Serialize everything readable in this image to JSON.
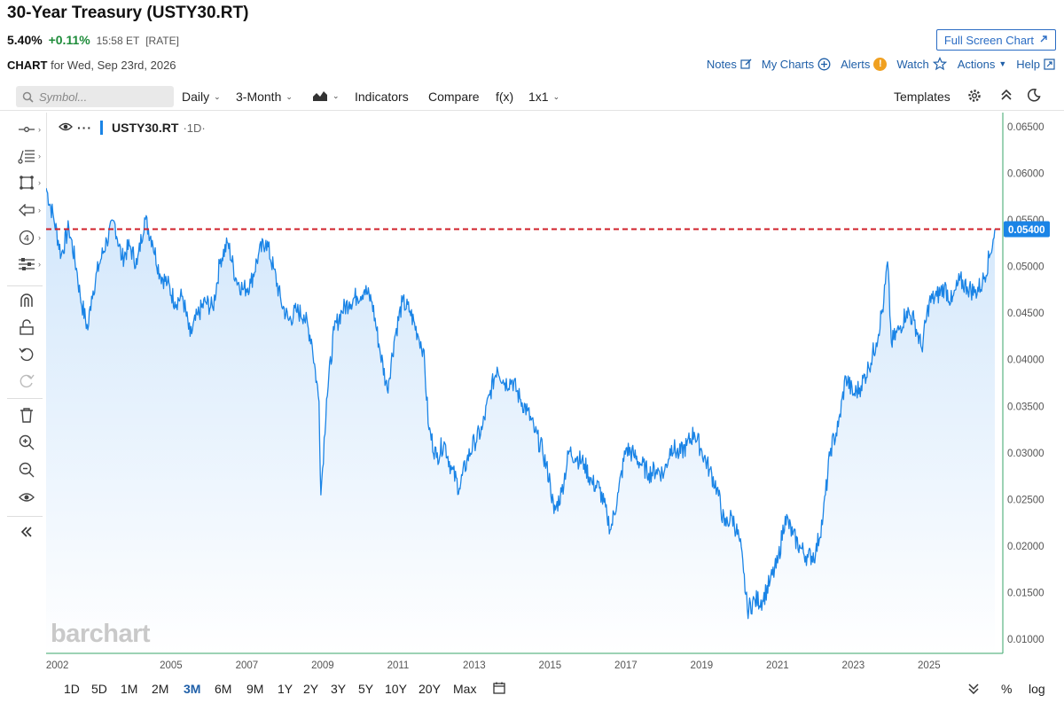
{
  "header": {
    "title": "30-Year Treasury (USTY30.RT)",
    "price": "5.40%",
    "change": "+0.11%",
    "time": "15:58 ET",
    "type": "[RATE]",
    "fullscreen_label": "Full Screen Chart",
    "chart_label": "CHART",
    "chart_date": "for Wed, Sep 23rd, 2026"
  },
  "actions": {
    "notes": "Notes",
    "my_charts": "My Charts",
    "alerts": "Alerts",
    "alerts_badge": "!",
    "watch": "Watch",
    "actions": "Actions",
    "help": "Help"
  },
  "toolbar": {
    "symbol_placeholder": "Symbol...",
    "interval": "Daily",
    "period": "3-Month",
    "indicators": "Indicators",
    "compare": "Compare",
    "fx": "f(x)",
    "layout": "1x1",
    "templates": "Templates"
  },
  "legend": {
    "symbol": "USTY30.RT",
    "interval": "·1D·"
  },
  "watermark": "barchart",
  "ranges": [
    "1D",
    "5D",
    "1M",
    "2M",
    "3M",
    "6M",
    "9M",
    "1Y",
    "2Y",
    "3Y",
    "5Y",
    "10Y",
    "20Y",
    "Max"
  ],
  "active_range": "3M",
  "bottom_right": {
    "percent": "%",
    "log": "log"
  },
  "colors": {
    "line": "#1a84e6",
    "fill_top": "#cfe5fb",
    "ref_line": "#d0202a",
    "price_tag": "#1a84e6",
    "accent": "#1f5fa8",
    "positive": "#1e8c3a"
  },
  "chart_data": {
    "type": "area",
    "y_axis_position": "right",
    "ylim": [
      0.0085,
      0.0665
    ],
    "y_ticks": [
      "0.06500",
      "0.06000",
      "0.05500",
      "0.05000",
      "0.04500",
      "0.04000",
      "0.03500",
      "0.03000",
      "0.02500",
      "0.02000",
      "0.01500",
      "0.01000"
    ],
    "x_ticks": [
      "2002",
      "2005",
      "2007",
      "2009",
      "2011",
      "2013",
      "2015",
      "2017",
      "2019",
      "2021",
      "2023",
      "2025"
    ],
    "reference_line": {
      "value": 0.054,
      "label": "0.05400"
    },
    "series": [
      {
        "x": [
          2001.7,
          2001.9,
          2002.1,
          2002.3,
          2002.5,
          2002.6,
          2002.8,
          2002.9,
          2003.1,
          2003.3,
          2003.5,
          2003.7,
          2003.9,
          2004.1,
          2004.3,
          2004.5,
          2004.7,
          2004.9,
          2005.1,
          2005.3,
          2005.5,
          2005.7,
          2005.9,
          2006.1,
          2006.3,
          2006.5,
          2006.7,
          2006.9,
          2007.1,
          2007.3,
          2007.5,
          2007.7,
          2007.9,
          2008.1,
          2008.3,
          2008.5,
          2008.7,
          2008.9,
          2008.95,
          2009.1,
          2009.3,
          2009.5,
          2009.7,
          2009.9,
          2010.1,
          2010.3,
          2010.5,
          2010.7,
          2010.9,
          2011.1,
          2011.3,
          2011.5,
          2011.65,
          2011.8,
          2012.0,
          2012.2,
          2012.4,
          2012.6,
          2012.8,
          2013.0,
          2013.2,
          2013.4,
          2013.6,
          2013.8,
          2014.0,
          2014.2,
          2014.4,
          2014.6,
          2014.8,
          2015.0,
          2015.1,
          2015.3,
          2015.5,
          2015.7,
          2015.9,
          2016.1,
          2016.3,
          2016.5,
          2016.6,
          2016.8,
          2017.0,
          2017.2,
          2017.4,
          2017.6,
          2017.8,
          2018.0,
          2018.2,
          2018.4,
          2018.6,
          2018.8,
          2019.0,
          2019.2,
          2019.4,
          2019.6,
          2019.8,
          2020.0,
          2020.1,
          2020.2,
          2020.4,
          2020.6,
          2020.8,
          2021.0,
          2021.2,
          2021.4,
          2021.6,
          2021.8,
          2022.0,
          2022.2,
          2022.4,
          2022.6,
          2022.8,
          2023.0,
          2023.2,
          2023.4,
          2023.6,
          2023.8,
          2023.9,
          2024.0,
          2024.2,
          2024.4,
          2024.6,
          2024.8,
          2025.0,
          2025.2,
          2025.4,
          2025.6,
          2025.8,
          2026.0,
          2026.2,
          2026.4,
          2026.6,
          2026.73
        ],
        "values": [
          0.0584,
          0.0552,
          0.0512,
          0.0542,
          0.0498,
          0.0468,
          0.0432,
          0.0468,
          0.0502,
          0.0528,
          0.0548,
          0.0508,
          0.0522,
          0.0502,
          0.0552,
          0.0528,
          0.0492,
          0.0482,
          0.0462,
          0.0468,
          0.0425,
          0.0448,
          0.0462,
          0.0455,
          0.0508,
          0.0525,
          0.0488,
          0.0475,
          0.0482,
          0.0512,
          0.0528,
          0.0498,
          0.0462,
          0.0442,
          0.0452,
          0.0448,
          0.0422,
          0.0355,
          0.0255,
          0.0358,
          0.0432,
          0.0452,
          0.0462,
          0.0468,
          0.0475,
          0.0462,
          0.0412,
          0.0368,
          0.0425,
          0.0462,
          0.0452,
          0.0428,
          0.0412,
          0.0325,
          0.0295,
          0.0312,
          0.0282,
          0.0262,
          0.0292,
          0.0312,
          0.0325,
          0.0362,
          0.0392,
          0.0375,
          0.0378,
          0.0358,
          0.0345,
          0.0322,
          0.0302,
          0.0268,
          0.0235,
          0.0258,
          0.0302,
          0.0295,
          0.0288,
          0.0268,
          0.0262,
          0.0232,
          0.0218,
          0.0258,
          0.0305,
          0.0298,
          0.0288,
          0.0278,
          0.0282,
          0.0278,
          0.0308,
          0.0298,
          0.0308,
          0.0322,
          0.0302,
          0.0282,
          0.0262,
          0.0222,
          0.0232,
          0.0205,
          0.0172,
          0.0132,
          0.0142,
          0.0142,
          0.0162,
          0.0182,
          0.0232,
          0.0212,
          0.0198,
          0.0188,
          0.0192,
          0.0232,
          0.0305,
          0.0328,
          0.0382,
          0.0362,
          0.0372,
          0.0392,
          0.0418,
          0.0462,
          0.0505,
          0.0418,
          0.0432,
          0.0452,
          0.0442,
          0.0412,
          0.0462,
          0.0468,
          0.0478,
          0.0462,
          0.0485,
          0.0478,
          0.0472,
          0.0482,
          0.0512,
          0.054
        ]
      }
    ]
  }
}
